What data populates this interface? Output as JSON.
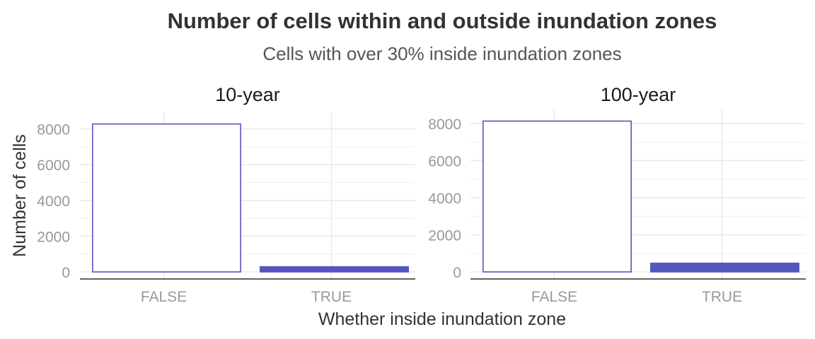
{
  "chart_data": {
    "type": "bar",
    "title": "Number of cells within and outside inundation zones",
    "subtitle": "Cells with over 30% inside inundation zones",
    "xlabel": "Whether inside inundation zone",
    "ylabel": "Number of cells",
    "categories": [
      "FALSE",
      "TRUE"
    ],
    "yticks": [
      "0",
      "2000",
      "4000",
      "6000",
      "8000"
    ],
    "colors": {
      "outline": "#5555c0",
      "fill_true": "#5555c0",
      "fill_false": "#ffffff"
    },
    "grid": true,
    "panels": [
      {
        "name": "10-year",
        "values": [
          8280,
          290
        ],
        "ylim": [
          0,
          8500
        ]
      },
      {
        "name": "100-year",
        "values": [
          8130,
          470
        ],
        "ylim": [
          0,
          8300
        ]
      }
    ]
  }
}
